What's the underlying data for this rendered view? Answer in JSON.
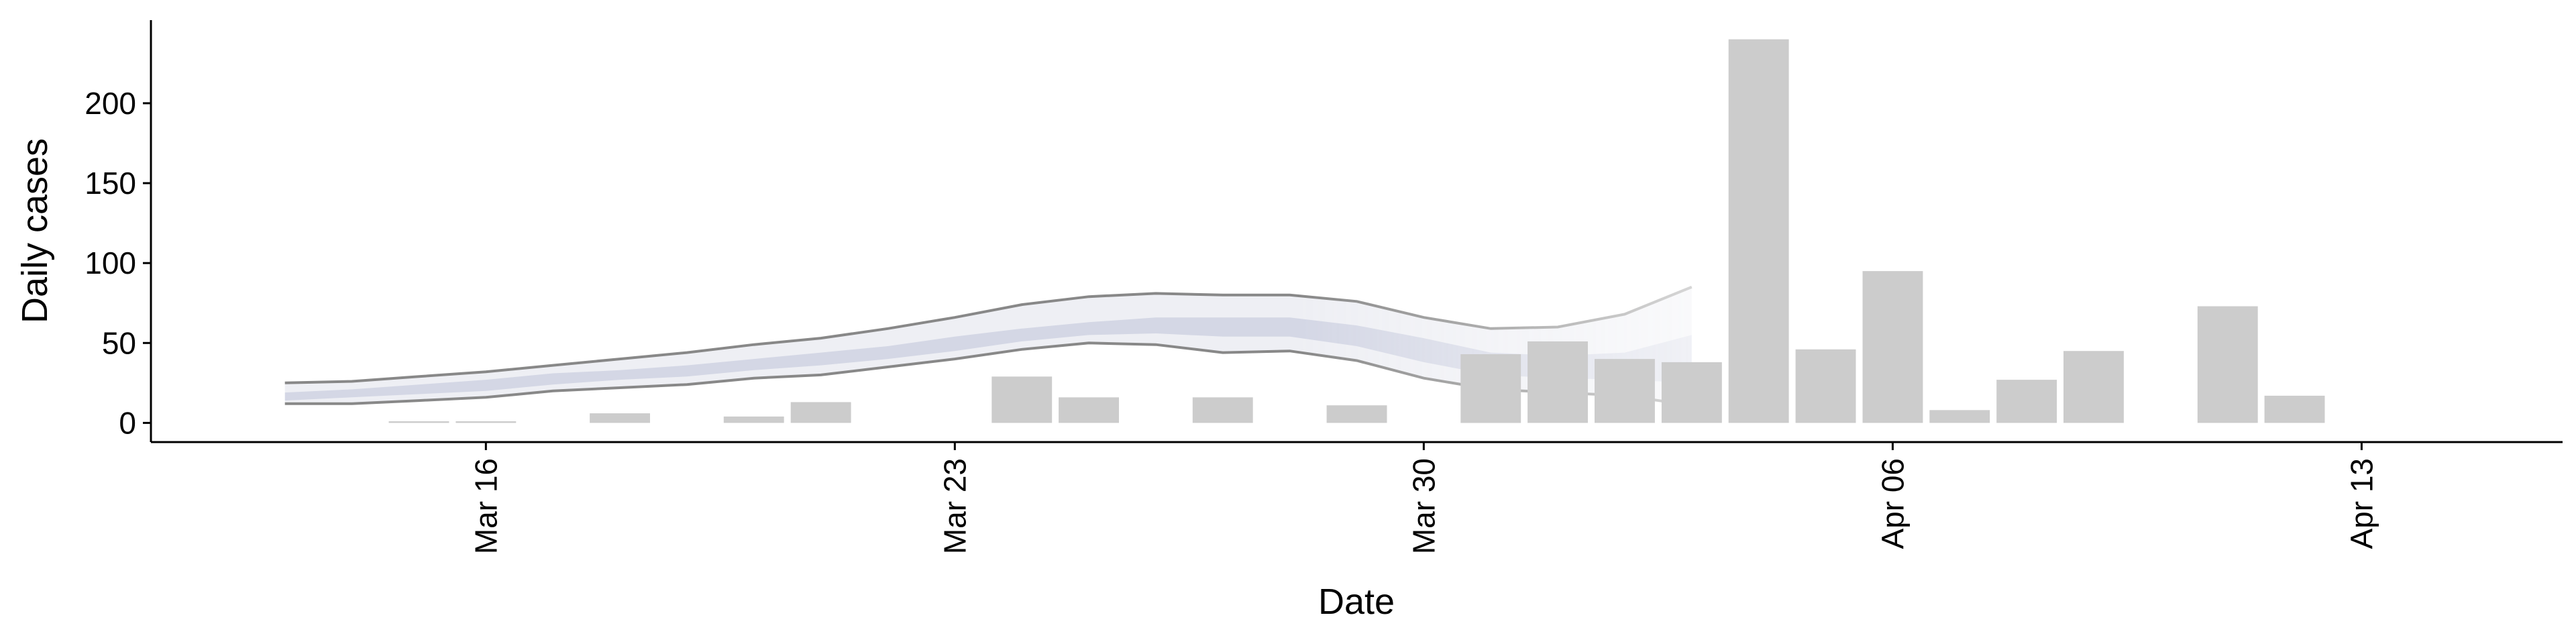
{
  "chart_data": {
    "type": "bar",
    "xlabel": "Date",
    "ylabel": "Daily cases",
    "x_tick_labels": [
      "Mar 16",
      "Mar 23",
      "Mar 30",
      "Apr 06",
      "Apr 13"
    ],
    "x_tick_dates": [
      "2020-03-16",
      "2020-03-23",
      "2020-03-30",
      "2020-04-06",
      "2020-04-13"
    ],
    "y_ticks": [
      0,
      50,
      100,
      150,
      200
    ],
    "xlim": [
      "2020-03-11",
      "2020-04-16"
    ],
    "ylim": [
      -12,
      252
    ],
    "grid": false,
    "legend": "none",
    "colors": {
      "bars": "#cccccc",
      "ribbon_outer": "#b0b8cf",
      "ribbon_inner": "#8f9ac0",
      "line_upper": "#888888",
      "line_lower": "#888888"
    },
    "bars": [
      {
        "date": "2020-03-15",
        "value": 1
      },
      {
        "date": "2020-03-16",
        "value": 1
      },
      {
        "date": "2020-03-18",
        "value": 6
      },
      {
        "date": "2020-03-20",
        "value": 4
      },
      {
        "date": "2020-03-21",
        "value": 13
      },
      {
        "date": "2020-03-24",
        "value": 29
      },
      {
        "date": "2020-03-25",
        "value": 16
      },
      {
        "date": "2020-03-27",
        "value": 16
      },
      {
        "date": "2020-03-29",
        "value": 11
      },
      {
        "date": "2020-03-31",
        "value": 43
      },
      {
        "date": "2020-04-01",
        "value": 51
      },
      {
        "date": "2020-04-02",
        "value": 40
      },
      {
        "date": "2020-04-03",
        "value": 38
      },
      {
        "date": "2020-04-04",
        "value": 240
      },
      {
        "date": "2020-04-05",
        "value": 46
      },
      {
        "date": "2020-04-06",
        "value": 95
      },
      {
        "date": "2020-04-07",
        "value": 8
      },
      {
        "date": "2020-04-08",
        "value": 27
      },
      {
        "date": "2020-04-09",
        "value": 45
      },
      {
        "date": "2020-04-11",
        "value": 73
      },
      {
        "date": "2020-04-12",
        "value": 17
      }
    ],
    "estimate": [
      {
        "date": "2020-03-13",
        "lower90": 12,
        "lower50": 14,
        "upper50": 19,
        "upper90": 25
      },
      {
        "date": "2020-03-14",
        "lower90": 12,
        "lower50": 16,
        "upper50": 21,
        "upper90": 26
      },
      {
        "date": "2020-03-15",
        "lower90": 14,
        "lower50": 18,
        "upper50": 24,
        "upper90": 29
      },
      {
        "date": "2020-03-16",
        "lower90": 16,
        "lower50": 20,
        "upper50": 27,
        "upper90": 32
      },
      {
        "date": "2020-03-17",
        "lower90": 20,
        "lower50": 24,
        "upper50": 31,
        "upper90": 36
      },
      {
        "date": "2020-03-18",
        "lower90": 22,
        "lower50": 27,
        "upper50": 33,
        "upper90": 40
      },
      {
        "date": "2020-03-19",
        "lower90": 24,
        "lower50": 29,
        "upper50": 36,
        "upper90": 44
      },
      {
        "date": "2020-03-20",
        "lower90": 28,
        "lower50": 33,
        "upper50": 40,
        "upper90": 49
      },
      {
        "date": "2020-03-21",
        "lower90": 30,
        "lower50": 36,
        "upper50": 44,
        "upper90": 53
      },
      {
        "date": "2020-03-22",
        "lower90": 35,
        "lower50": 40,
        "upper50": 48,
        "upper90": 59
      },
      {
        "date": "2020-03-23",
        "lower90": 40,
        "lower50": 45,
        "upper50": 54,
        "upper90": 66
      },
      {
        "date": "2020-03-24",
        "lower90": 46,
        "lower50": 51,
        "upper50": 59,
        "upper90": 74
      },
      {
        "date": "2020-03-25",
        "lower90": 50,
        "lower50": 55,
        "upper50": 63,
        "upper90": 79
      },
      {
        "date": "2020-03-26",
        "lower90": 49,
        "lower50": 56,
        "upper50": 66,
        "upper90": 81
      },
      {
        "date": "2020-03-27",
        "lower90": 44,
        "lower50": 54,
        "upper50": 66,
        "upper90": 80
      },
      {
        "date": "2020-03-28",
        "lower90": 45,
        "lower50": 54,
        "upper50": 66,
        "upper90": 80
      },
      {
        "date": "2020-03-29",
        "lower90": 39,
        "lower50": 48,
        "upper50": 61,
        "upper90": 76
      },
      {
        "date": "2020-03-30",
        "lower90": 28,
        "lower50": 38,
        "upper50": 53,
        "upper90": 66
      },
      {
        "date": "2020-03-31",
        "lower90": 21,
        "lower50": 30,
        "upper50": 44,
        "upper90": 59
      },
      {
        "date": "2020-04-01",
        "lower90": 19,
        "lower50": 28,
        "upper50": 42,
        "upper90": 60
      },
      {
        "date": "2020-04-02",
        "lower90": 17,
        "lower50": 27,
        "upper50": 44,
        "upper90": 68
      },
      {
        "date": "2020-04-03",
        "lower90": 11,
        "lower50": 25,
        "upper50": 55,
        "upper90": 85
      }
    ]
  }
}
